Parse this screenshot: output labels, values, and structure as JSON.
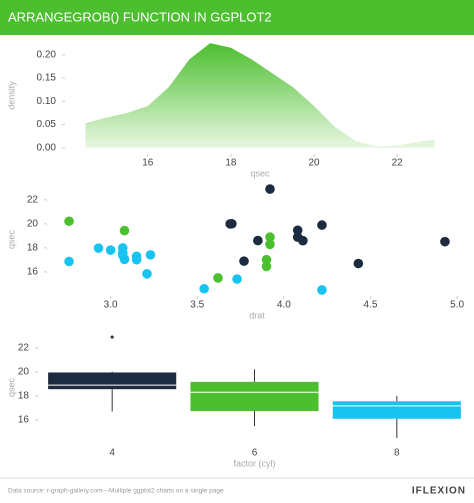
{
  "header": {
    "title": "ARRANGEGROB() FUNCTION IN GGPLOT2"
  },
  "chart_data": [
    {
      "type": "density",
      "xlabel": "qsec",
      "ylabel": "density",
      "color": "#4cbf2f",
      "x": [
        14.5,
        15,
        15.5,
        16,
        16.5,
        17,
        17.5,
        18,
        18.5,
        19,
        19.5,
        20,
        20.5,
        21,
        21.5,
        22,
        22.5,
        22.9
      ],
      "values": [
        0.053,
        0.065,
        0.075,
        0.09,
        0.13,
        0.19,
        0.225,
        0.215,
        0.19,
        0.16,
        0.13,
        0.09,
        0.045,
        0.015,
        0.003,
        0.005,
        0.013,
        0.018
      ],
      "xlim": [
        14.08,
        23.32
      ],
      "ylim": [
        -0.011,
        0.236
      ],
      "xticks": [
        16,
        18,
        20,
        22
      ],
      "yticks": [
        {
          "value": 0,
          "label": "0.00"
        },
        {
          "value": 0.05,
          "label": "0.05"
        },
        {
          "value": 0.1,
          "label": "0.10"
        },
        {
          "value": 0.15,
          "label": "0.15"
        },
        {
          "value": 0.2,
          "label": "0.20"
        }
      ]
    },
    {
      "type": "scatter",
      "xlabel": "drat",
      "ylabel": "qsec",
      "xlim": [
        2.65,
        5.04
      ],
      "ylim": [
        14.08,
        23.32
      ],
      "xticks": [
        {
          "value": 3,
          "label": "3.0"
        },
        {
          "value": 3.5,
          "label": "3.5"
        },
        {
          "value": 4,
          "label": "4.0"
        },
        {
          "value": 4.5,
          "label": "4.5"
        },
        {
          "value": 5,
          "label": "5.0"
        }
      ],
      "yticks": [
        16,
        18,
        20,
        22
      ],
      "series": [
        {
          "color": "#1c2b3f",
          "x": [
            3.85,
            3.69,
            3.92,
            4.08,
            4.93,
            4.22,
            3.7,
            4.08,
            4.43,
            3.77,
            4.11
          ],
          "values": [
            18.61,
            20.0,
            22.9,
            19.47,
            18.52,
            19.9,
            20.01,
            18.9,
            16.7,
            16.9,
            18.6
          ]
        },
        {
          "color": "#4cbf2f",
          "x": [
            3.9,
            3.9,
            3.08,
            2.76,
            3.92,
            3.92,
            3.62
          ],
          "values": [
            16.46,
            17.02,
            19.44,
            20.22,
            18.3,
            18.9,
            15.5
          ]
        },
        {
          "color": "#19c3ef",
          "x": [
            3.15,
            3.21,
            3.07,
            3.07,
            3.07,
            2.93,
            3.0,
            3.23,
            2.76,
            3.15,
            3.73,
            3.08,
            4.22,
            3.54
          ],
          "values": [
            17.02,
            15.84,
            17.4,
            17.6,
            18.0,
            17.98,
            17.82,
            17.42,
            16.87,
            17.3,
            15.41,
            17.05,
            14.5,
            14.6
          ]
        }
      ]
    },
    {
      "type": "box",
      "xlabel": "factor (cyl)",
      "ylabel": "qsec",
      "ylim": [
        14.08,
        23.32
      ],
      "yticks": [
        16,
        18,
        20,
        22
      ],
      "categories": [
        "4",
        "6",
        "8"
      ],
      "boxes": [
        {
          "color": "#1c2b3f",
          "min": 16.7,
          "q1": 18.56,
          "median": 18.9,
          "q3": 19.95,
          "max": 20.01,
          "outliers": [
            22.9
          ]
        },
        {
          "color": "#4cbf2f",
          "min": 15.5,
          "q1": 16.74,
          "median": 18.3,
          "q3": 19.17,
          "max": 20.22,
          "outliers": []
        },
        {
          "color": "#19c3ef",
          "min": 14.5,
          "q1": 16.0975,
          "median": 17.175,
          "q3": 17.555,
          "max": 18.0,
          "outliers": []
        }
      ]
    }
  ],
  "footer": {
    "source": "Data source: r-graph-gallery.com—Multiple ggplot2 charts on a single page",
    "logo": "IFLEXION"
  }
}
